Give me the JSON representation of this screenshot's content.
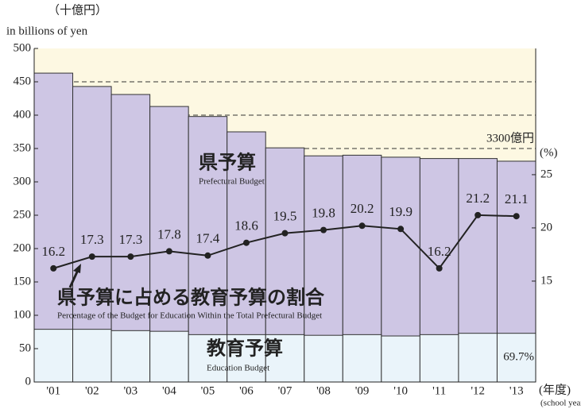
{
  "chart_data": {
    "type": "bar",
    "unit_label_ja": "（十億円）",
    "unit_label": "in billions of yen",
    "y2_unit_label": "(%)",
    "x_unit_label_ja": "(年度)",
    "x_unit_label": "(school year)",
    "categories": [
      "'01",
      "'02",
      "'03",
      "'04",
      "'05",
      "'06",
      "'07",
      "'08",
      "'09",
      "'10",
      "'11",
      "'12",
      "'13"
    ],
    "series": [
      {
        "name": "県予算",
        "name_en": "Prefectural Budget",
        "color": "#cec6e4",
        "values": [
          463,
          443,
          431,
          413,
          398,
          375,
          351,
          339,
          340,
          337,
          335,
          335,
          331
        ]
      },
      {
        "name": "教育予算",
        "name_en": "Education Budget",
        "color": "#eaf4fa",
        "values": [
          79,
          79,
          77,
          76,
          71,
          71,
          71,
          70,
          71,
          69,
          71,
          73,
          73
        ]
      },
      {
        "name": "県予算に占める教育予算の割合",
        "name_en": "Percentage of the Budget for Education Within the Total Prefectural Budget",
        "color": "#222222",
        "axis": "y2",
        "type": "line",
        "values": [
          16.2,
          17.3,
          17.3,
          17.8,
          17.4,
          18.6,
          19.5,
          19.8,
          20.2,
          19.9,
          16.2,
          21.2,
          21.1
        ]
      }
    ],
    "annotations": [
      "3300億円",
      "69.7%"
    ],
    "ylim": [
      0,
      500
    ],
    "yticks": [
      0,
      50,
      100,
      150,
      200,
      250,
      300,
      350,
      400,
      450,
      500
    ],
    "y2lim": [
      5.52,
      36.86
    ],
    "y2ticks": [
      15,
      20,
      25
    ],
    "dashed_grid": [
      350,
      400,
      450
    ],
    "background": "#fdf8e2"
  }
}
